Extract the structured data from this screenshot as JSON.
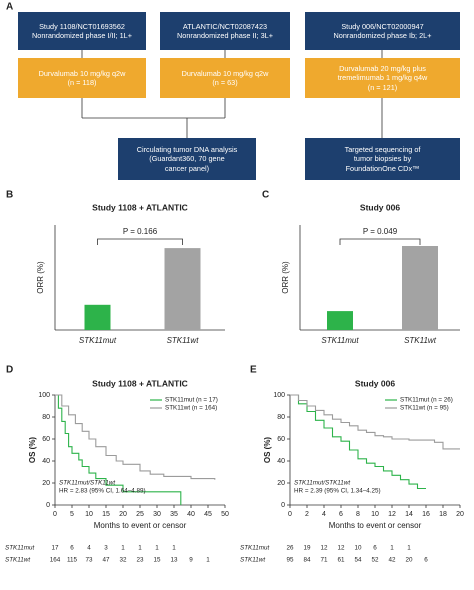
{
  "diagram": {
    "panel": "A",
    "studies": [
      {
        "lines": [
          "Study 1108/NCT01693562",
          "Nonrandomized phase I/II; 1L+"
        ],
        "treatment": [
          "Durvalumab 10 mg/kg q2w",
          "(n = 118)"
        ]
      },
      {
        "lines": [
          "ATLANTIC/NCT02087423",
          "Nonrandomized phase II; 3L+"
        ],
        "treatment": [
          "Durvalumab 10 mg/kg q2w",
          "(n = 63)"
        ]
      },
      {
        "lines": [
          "Study 006/NCT02000947",
          "Nonrandomized phase Ib; 2L+"
        ],
        "treatment": [
          "Durvalumab 20 mg/kg plus",
          "tremelimumab 1 mg/kg q4w",
          "(n = 121)"
        ]
      }
    ],
    "assays": [
      [
        "Circulating tumor DNA analysis",
        "(Guardant360, 70 gene",
        "cancer panel)"
      ],
      [
        "Targeted sequencing of",
        "tumor biopsies by",
        "FoundationOne CDx™"
      ]
    ]
  },
  "chart_data": [
    {
      "type": "bar",
      "panel": "B",
      "title": "Study 1108 + ATLANTIC",
      "annotation": "P = 0.166",
      "ylabel": "ORR (%)",
      "categories": [
        "STK11mut",
        "STK11wt"
      ],
      "values": [
        6,
        19.5
      ],
      "colors": [
        "#2db34a",
        "#a3a3a3"
      ],
      "ylim": [
        0,
        25
      ]
    },
    {
      "type": "bar",
      "panel": "C",
      "title": "Study 006",
      "annotation": "P = 0.049",
      "ylabel": "ORR (%)",
      "categories": [
        "STK11mut",
        "STK11wt"
      ],
      "values": [
        4.5,
        20
      ],
      "colors": [
        "#2db34a",
        "#a3a3a3"
      ],
      "ylim": [
        0,
        25
      ]
    },
    {
      "type": "line",
      "panel": "D",
      "title": "Study 1108 + ATLANTIC",
      "xlabel": "Months to event or censor",
      "ylabel": "OS (%)",
      "xlim": [
        0,
        50
      ],
      "xticks": [
        0,
        5,
        10,
        15,
        20,
        25,
        30,
        35,
        40,
        45,
        50
      ],
      "ylim": [
        0,
        100
      ],
      "yticks": [
        0,
        20,
        40,
        60,
        80,
        100
      ],
      "series": [
        {
          "name": "STK11mut (n = 17)",
          "color": "#2db34a",
          "x": [
            0,
            1,
            2,
            3,
            4,
            5,
            7,
            8,
            10,
            12,
            15,
            20,
            37
          ],
          "values": [
            100,
            88,
            76,
            65,
            53,
            47,
            41,
            35,
            29,
            24,
            18,
            12,
            0
          ]
        },
        {
          "name": "STK11wt (n = 164)",
          "color": "#9b9b9b",
          "x": [
            0,
            2,
            4,
            6,
            8,
            10,
            12,
            15,
            18,
            20,
            25,
            28,
            32,
            40,
            47
          ],
          "values": [
            100,
            90,
            82,
            74,
            67,
            60,
            53,
            45,
            40,
            37,
            31,
            28,
            26,
            24,
            23
          ]
        }
      ],
      "annotations": [
        "STK11mut/STK11wt",
        "HR = 2.83 (95% CI, 1.64–4.89)"
      ],
      "at_risk": [
        {
          "name": "STK11mut",
          "x": [
            0,
            5,
            10,
            15,
            20,
            25,
            30,
            35
          ],
          "values": [
            17,
            6,
            4,
            3,
            1,
            1,
            1,
            1
          ]
        },
        {
          "name": "STK11wt",
          "x": [
            0,
            5,
            10,
            15,
            20,
            25,
            30,
            35,
            40,
            45
          ],
          "values": [
            164,
            115,
            73,
            47,
            32,
            23,
            15,
            13,
            9,
            1
          ]
        }
      ]
    },
    {
      "type": "line",
      "panel": "E",
      "title": "Study 006",
      "xlabel": "Months to event or censor",
      "ylabel": "OS (%)",
      "xlim": [
        0,
        20
      ],
      "xticks": [
        0,
        2,
        4,
        6,
        8,
        10,
        12,
        14,
        16,
        18,
        20
      ],
      "ylim": [
        0,
        100
      ],
      "yticks": [
        0,
        20,
        40,
        60,
        80,
        100
      ],
      "series": [
        {
          "name": "STK11mut (n = 26)",
          "color": "#2db34a",
          "x": [
            0,
            1,
            2,
            3,
            4,
            5,
            6,
            7,
            8,
            9,
            10,
            11,
            12,
            13,
            14,
            15,
            16
          ],
          "values": [
            100,
            92,
            85,
            77,
            70,
            62,
            58,
            50,
            42,
            38,
            35,
            31,
            27,
            23,
            19,
            15,
            15
          ]
        },
        {
          "name": "STK11wt (n = 95)",
          "color": "#9b9b9b",
          "x": [
            0,
            1,
            2,
            3,
            4,
            5,
            6,
            7,
            8,
            9,
            10,
            11,
            12,
            14,
            17,
            18,
            20
          ],
          "values": [
            100,
            95,
            90,
            86,
            82,
            78,
            75,
            72,
            68,
            66,
            63,
            62,
            60,
            59,
            57,
            51,
            51
          ]
        }
      ],
      "annotations": [
        "STK11mut/STK11wt",
        "HR = 2.39 (95% CI, 1.34–4.25)"
      ],
      "at_risk": [
        {
          "name": "STK11mut",
          "x": [
            0,
            2,
            4,
            6,
            8,
            10,
            12,
            14
          ],
          "values": [
            26,
            19,
            12,
            12,
            10,
            6,
            1,
            1
          ]
        },
        {
          "name": "STK11wt",
          "x": [
            0,
            2,
            4,
            6,
            8,
            10,
            12,
            14,
            16
          ],
          "values": [
            95,
            84,
            71,
            61,
            54,
            52,
            42,
            20,
            6
          ]
        }
      ]
    }
  ]
}
